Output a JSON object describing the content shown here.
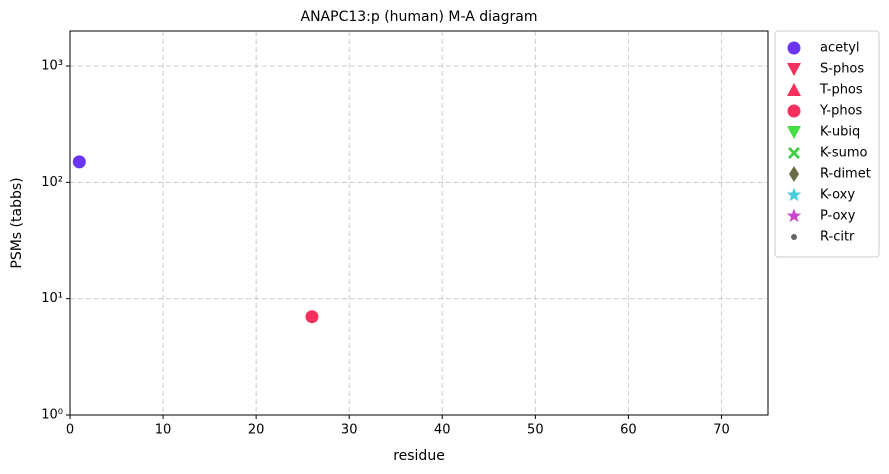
{
  "chart_data": {
    "type": "scatter",
    "title": "ANAPC13:p (human) M-A diagram",
    "xlabel": "residue",
    "ylabel": "PSMs (tabbs)",
    "xlim": [
      0,
      75
    ],
    "xticks": [
      0,
      10,
      20,
      30,
      40,
      50,
      60,
      70
    ],
    "ylim": [
      1,
      2000
    ],
    "yscale": "log",
    "yticks": [
      {
        "value": 1,
        "label": "10⁰"
      },
      {
        "value": 10,
        "label": "10¹"
      },
      {
        "value": 100,
        "label": "10²"
      },
      {
        "value": 1000,
        "label": "10³"
      }
    ],
    "grid": true,
    "legend": "outside right",
    "series": [
      {
        "name": "acetyl",
        "color": "#6a35f2",
        "marker": "circle",
        "x": [
          1
        ],
        "values": [
          150
        ]
      },
      {
        "name": "S-phos",
        "color": "#f5305f",
        "marker": "triangle-down",
        "x": [],
        "values": []
      },
      {
        "name": "T-phos",
        "color": "#f5305f",
        "marker": "triangle-up",
        "x": [],
        "values": []
      },
      {
        "name": "Y-phos",
        "color": "#f5305f",
        "marker": "circle",
        "x": [
          26
        ],
        "values": [
          7
        ]
      },
      {
        "name": "K-ubiq",
        "color": "#45dd45",
        "marker": "triangle-down",
        "x": [],
        "values": []
      },
      {
        "name": "K-sumo",
        "color": "#45cc45",
        "marker": "x",
        "x": [],
        "values": []
      },
      {
        "name": "R-dimet",
        "color": "#6b6b45",
        "marker": "diamond",
        "x": [],
        "values": []
      },
      {
        "name": "K-oxy",
        "color": "#45ccdd",
        "marker": "star",
        "x": [],
        "values": []
      },
      {
        "name": "P-oxy",
        "color": "#cc45cc",
        "marker": "star",
        "x": [],
        "values": []
      },
      {
        "name": "R-citr",
        "color": "#666666",
        "marker": "point",
        "x": [],
        "values": []
      }
    ]
  }
}
